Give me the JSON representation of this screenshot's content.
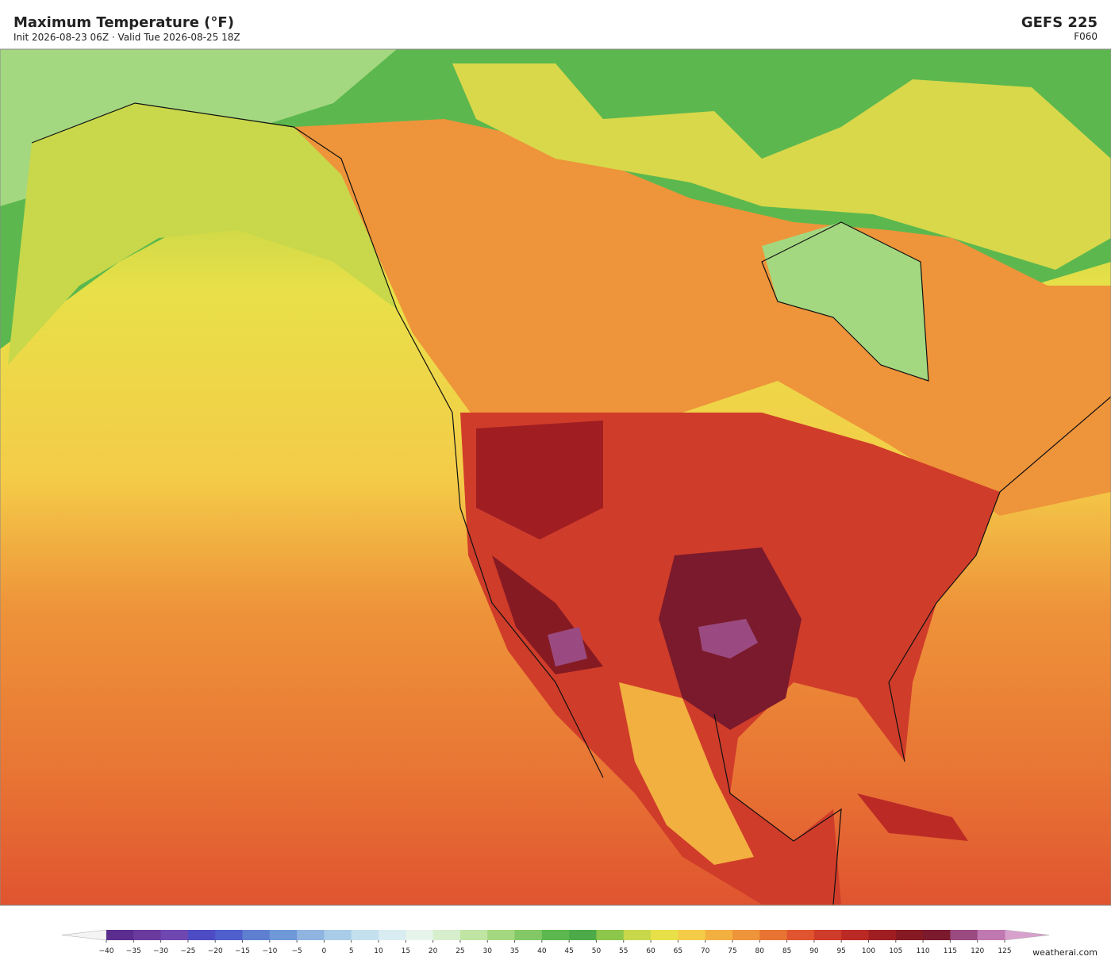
{
  "header": {
    "title": "Maximum Temperature  (°F)",
    "subtitle": "Init 2026-08-23 06Z   ·   Valid Tue 2026-08-25 18Z",
    "model": "GEFS  225",
    "forecast_hour": "F060"
  },
  "colorbar": {
    "ticks": [
      {
        "value": -40,
        "label": "−40"
      },
      {
        "value": -35,
        "label": "−35"
      },
      {
        "value": -30,
        "label": "−30"
      },
      {
        "value": -25,
        "label": "−25"
      },
      {
        "value": -20,
        "label": "−20"
      },
      {
        "value": -15,
        "label": "−15"
      },
      {
        "value": -10,
        "label": "−10"
      },
      {
        "value": -5,
        "label": "−5"
      },
      0,
      5,
      10,
      15,
      20,
      25,
      30,
      35,
      40,
      45,
      50,
      55,
      60,
      65,
      70,
      75,
      80,
      85,
      90,
      95,
      100,
      105,
      110,
      115,
      120,
      125
    ],
    "colors": [
      "#5b2d8e",
      "#6a3a9e",
      "#6f47b0",
      "#4e4cc4",
      "#4f5fcc",
      "#5f80d0",
      "#6e98d8",
      "#8fb4e0",
      "#a9cce8",
      "#c4e0ee",
      "#d8ecf2",
      "#e6f4ec",
      "#d6eecc",
      "#c0e4a2",
      "#a4d880",
      "#82c866",
      "#5cb84e",
      "#4caa48",
      "#8cc64a",
      "#c8d84a",
      "#e8e048",
      "#f4cc48",
      "#f2b040",
      "#ee943a",
      "#e87434",
      "#e05430",
      "#d03c2a",
      "#bc2a26",
      "#a01e22",
      "#861a22",
      "#7a1a2c",
      "#9a4a80",
      "#c078b0"
    ],
    "under_color": "#f4f4f4",
    "over_color": "#d8a0cc"
  },
  "watermark": "weatherai.com"
}
